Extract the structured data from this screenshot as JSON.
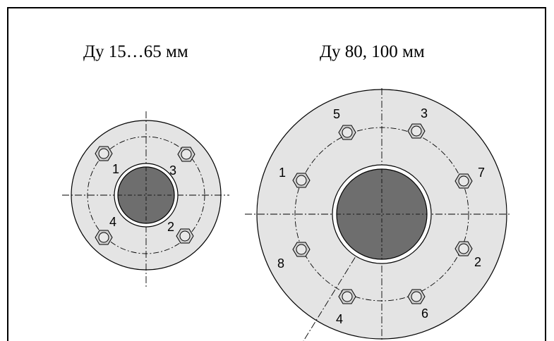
{
  "diagram": {
    "small_flange": {
      "title": "Ду 15…65 мм",
      "bolt_labels": [
        "1",
        "2",
        "3",
        "4"
      ]
    },
    "large_flange": {
      "title": "Ду 80, 100 мм",
      "bolt_labels": [
        "1",
        "2",
        "3",
        "4",
        "5",
        "6",
        "7",
        "8"
      ]
    },
    "colors": {
      "flange_fill": "#e4e4e4",
      "bore_fill": "#6e6e6e",
      "outline": "#000000",
      "bolt_fill": "#d0d0d0"
    }
  }
}
